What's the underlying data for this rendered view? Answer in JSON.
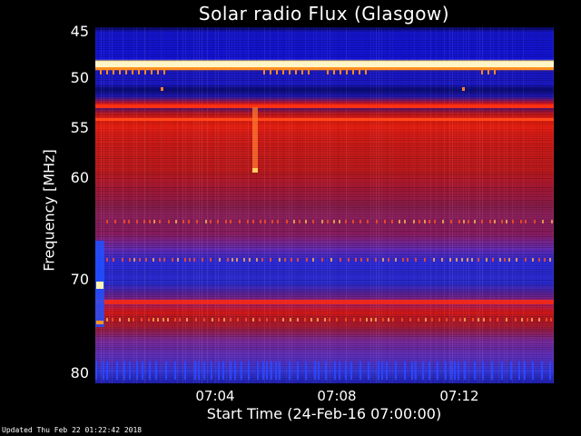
{
  "title": "Solar radio Flux (Glasgow)",
  "footer": "Updated Thu Feb 22 01:22:42 2018",
  "chart_data": {
    "type": "heatmap",
    "title": "Solar radio Flux (Glasgow)",
    "xlabel": "Start Time (24-Feb-16 07:00:00)",
    "ylabel": "Frequency [MHz]",
    "x_ticks": [
      "07:04",
      "07:08",
      "07:12"
    ],
    "y_ticks": [
      "45",
      "50",
      "55",
      "60",
      "70",
      "80"
    ],
    "ylim": [
      45,
      80
    ],
    "grid": false,
    "colormap": "blue-red-yellow",
    "colors": {
      "low": "#1010c8",
      "mid": "#7a30b8",
      "high": "#d01818",
      "peak": "#fff0a0"
    }
  }
}
